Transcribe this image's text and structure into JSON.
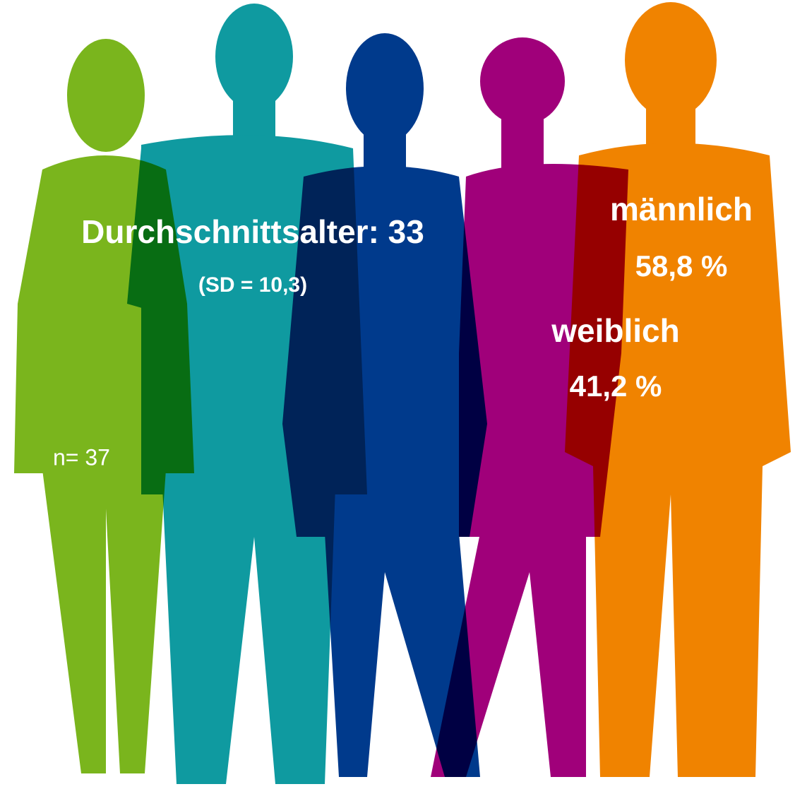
{
  "average_age": {
    "label": "Durchschnittsalter: 33",
    "sd": "(SD = 10,3)"
  },
  "gender": [
    {
      "label": "männlich",
      "share": "58,8 %"
    },
    {
      "label": "weiblich",
      "share": "41,2 %"
    }
  ],
  "sample": "n= 37"
}
